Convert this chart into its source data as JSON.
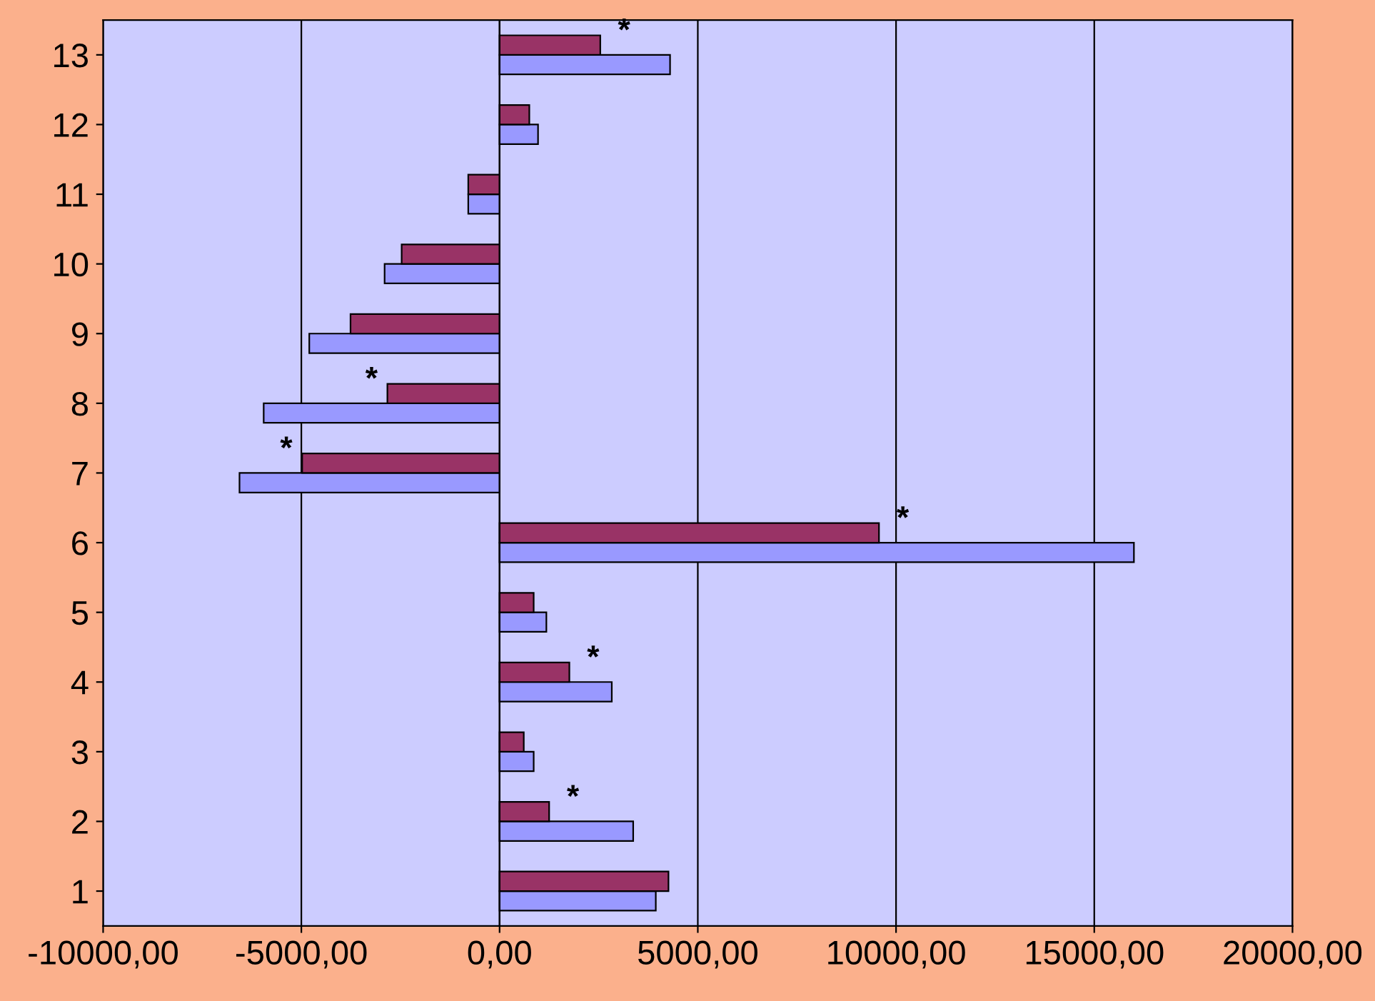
{
  "chart_data": {
    "type": "bar",
    "orientation": "horizontal",
    "categories": [
      "13",
      "12",
      "11",
      "10",
      "9",
      "8",
      "7",
      "6",
      "5",
      "4",
      "3",
      "2",
      "1"
    ],
    "series": [
      {
        "color": "#9999ff",
        "values": [
          4300,
          970,
          -790,
          -2900,
          -4800,
          -5950,
          -6560,
          16000,
          1180,
          2830,
          860,
          3370,
          3940
        ]
      },
      {
        "color": "#993366",
        "values": [
          2540,
          750,
          -790,
          -2470,
          -3760,
          -2830,
          -4980,
          9570,
          860,
          1760,
          610,
          1250,
          4260
        ]
      }
    ],
    "xlim": [
      -10000,
      20000
    ],
    "xticks": [
      {
        "value": -10000,
        "label": "-10000,00"
      },
      {
        "value": -5000,
        "label": "-5000,00"
      },
      {
        "value": 0,
        "label": "0,00"
      },
      {
        "value": 5000,
        "label": "5000,00"
      },
      {
        "value": 10000,
        "label": "10000,00"
      },
      {
        "value": 15000,
        "label": "15000,00"
      },
      {
        "value": 20000,
        "label": "20000,00"
      }
    ],
    "grid": "x",
    "legend": false,
    "annotations": [
      {
        "text": "*",
        "x": 2540,
        "y": "13"
      },
      {
        "text": "*",
        "x": -2830,
        "y": "8"
      },
      {
        "text": "*",
        "x": -4980,
        "y": "7"
      },
      {
        "text": "*",
        "x": 9570,
        "y": "6"
      },
      {
        "text": "*",
        "x": 1760,
        "y": "4"
      },
      {
        "text": "*",
        "x": 1250,
        "y": "2"
      }
    ]
  }
}
